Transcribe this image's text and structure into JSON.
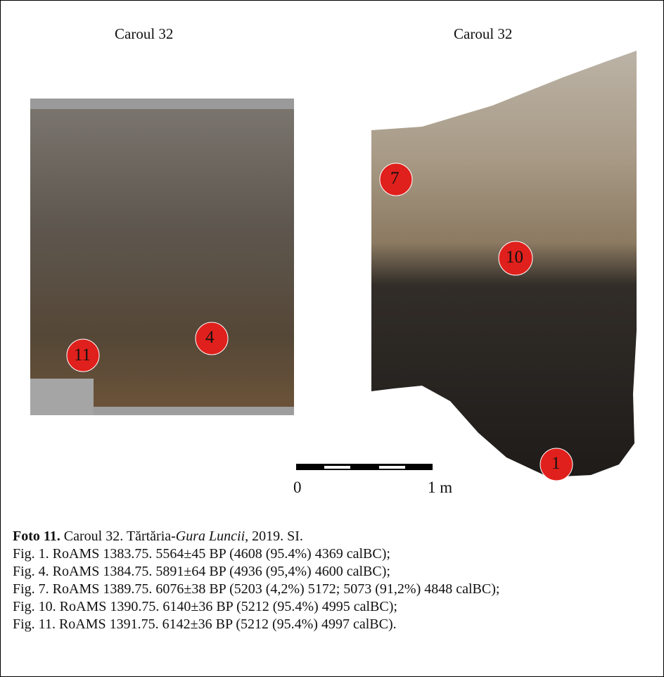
{
  "panels": [
    {
      "title": "Caroul 32"
    },
    {
      "title": "Caroul 32"
    }
  ],
  "markers": [
    {
      "label": "11"
    },
    {
      "label": "4"
    },
    {
      "label": "7"
    },
    {
      "label": "10"
    },
    {
      "label": "1"
    }
  ],
  "scale": {
    "start": "0",
    "end": "1 m"
  },
  "caption": {
    "label": "Foto 11.",
    "text_before": " Caroul 32. Tărtăria-",
    "italic": "Gura Luncii",
    "text_after": ", 2019. SI.",
    "lines": [
      "Fig. 1. RoAMS 1383.75. 5564±45 BP (4608 (95.4%) 4369 calBC);",
      "Fig. 4. RoAMS 1384.75. 5891±64 BP (4936 (95,4%) 4600 calBC);",
      "Fig. 7. RoAMS 1389.75. 6076±38 BP (5203 (4,2%) 5172; 5073 (91,2%) 4848 calBC);",
      "Fig. 10. RoAMS 1390.75. 6140±36 BP (5212 (95.4%) 4995 calBC);",
      "Fig. 11. RoAMS 1391.75. 6142±36 BP (5212 (95.4%) 4997 calBC)."
    ]
  }
}
